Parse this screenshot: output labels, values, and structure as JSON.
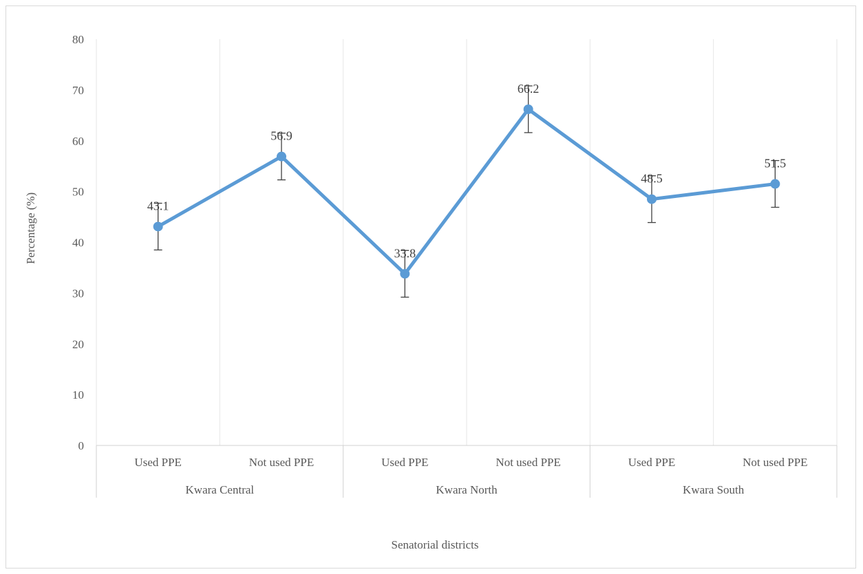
{
  "chart_data": {
    "type": "line",
    "title": "",
    "xlabel": "Senatorial districts",
    "ylabel": "Percentage (%)",
    "ylim": [
      0,
      80
    ],
    "y_ticks": [
      0,
      10,
      20,
      30,
      40,
      50,
      60,
      70,
      80
    ],
    "categories": [
      "Used PPE",
      "Not used PPE",
      "Used PPE",
      "Not used PPE",
      "Used PPE",
      "Not used PPE"
    ],
    "groups": [
      {
        "label": "Kwara Central",
        "span": 2
      },
      {
        "label": "Kwara North",
        "span": 2
      },
      {
        "label": "Kwara South",
        "span": 2
      }
    ],
    "series": [
      {
        "values": [
          43.1,
          56.9,
          33.8,
          66.2,
          48.5,
          51.5
        ],
        "labels": [
          "43.1",
          "56.9",
          "33.8",
          "66.2",
          "48.5",
          "51.5"
        ],
        "error": 4.6,
        "color": "#5b9bd5"
      }
    ],
    "grid": "vertical",
    "legend": "none"
  }
}
